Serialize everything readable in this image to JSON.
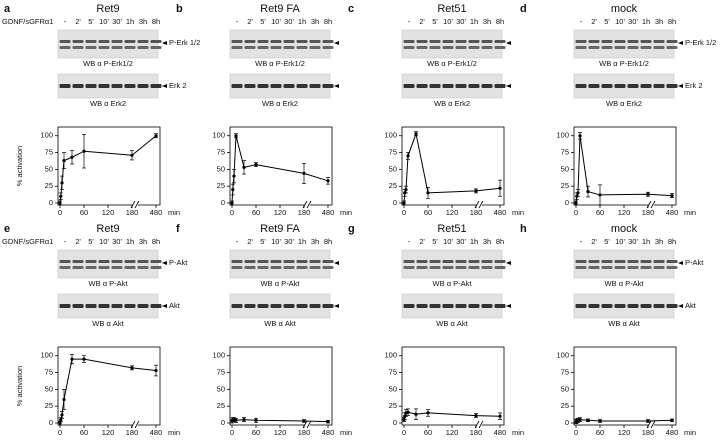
{
  "chart_data": [
    {
      "type": "line",
      "panel": "a",
      "title": "Ret9",
      "treatment": "GDNF/sGFRα1",
      "lanes": [
        "-",
        "2'",
        "5'",
        "10'",
        "30'",
        "1h",
        "3h",
        "8h"
      ],
      "blots": [
        {
          "label": "P-Erk 1/2",
          "caption": "WB α P-Erk1/2"
        },
        {
          "label": "Erk 2",
          "caption": "WB α Erk2"
        }
      ],
      "ylabel": "% activation",
      "xlabel": "min",
      "x": [
        0,
        2,
        5,
        10,
        30,
        60,
        180,
        480
      ],
      "values": [
        0,
        10,
        30,
        63,
        68,
        77,
        71,
        100
      ],
      "errors": [
        3,
        5,
        10,
        12,
        10,
        25,
        7,
        3
      ],
      "xlim": [
        0,
        480
      ],
      "ylim": [
        0,
        110
      ],
      "xticks": [
        0,
        60,
        120,
        180,
        480
      ],
      "yticks": [
        0,
        25,
        50,
        75,
        100
      ],
      "axis_break": true,
      "color": "#000000"
    },
    {
      "type": "line",
      "panel": "b",
      "title": "Ret9 FA",
      "lanes": [
        "-",
        "2'",
        "5'",
        "10'",
        "30'",
        "1h",
        "3h",
        "8h"
      ],
      "blots": [
        {
          "caption": "WB α P-Erk1/2"
        },
        {
          "caption": "WB α Erk2"
        }
      ],
      "xlabel": "min",
      "x": [
        0,
        2,
        5,
        10,
        30,
        60,
        180,
        480
      ],
      "values": [
        0,
        20,
        40,
        100,
        53,
        57,
        44,
        33
      ],
      "errors": [
        3,
        8,
        10,
        3,
        10,
        3,
        15,
        5
      ],
      "xlim": [
        0,
        480
      ],
      "ylim": [
        0,
        110
      ],
      "xticks": [
        0,
        60,
        120,
        180,
        480
      ],
      "yticks": [
        0,
        25,
        50,
        75,
        100
      ],
      "axis_break": true,
      "color": "#000000"
    },
    {
      "type": "line",
      "panel": "c",
      "title": "Ret51",
      "lanes": [
        "-",
        "2'",
        "5'",
        "10'",
        "30'",
        "1h",
        "3h",
        "8h"
      ],
      "blots": [
        {
          "caption": "WB α P-Erk1/2"
        },
        {
          "caption": "WB α Erk2"
        }
      ],
      "xlabel": "min",
      "x": [
        0,
        2,
        5,
        10,
        30,
        60,
        180,
        480
      ],
      "values": [
        0,
        15,
        20,
        70,
        103,
        15,
        18,
        22
      ],
      "errors": [
        3,
        5,
        5,
        5,
        3,
        8,
        3,
        12
      ],
      "xlim": [
        0,
        480
      ],
      "ylim": [
        0,
        110
      ],
      "xticks": [
        0,
        60,
        120,
        180,
        480
      ],
      "yticks": [
        0,
        25,
        50,
        75,
        100
      ],
      "axis_break": true,
      "color": "#000000"
    },
    {
      "type": "line",
      "panel": "d",
      "title": "mock",
      "lanes": [
        "-",
        "2'",
        "5'",
        "10'",
        "30'",
        "1h",
        "3h",
        "8h"
      ],
      "blots": [
        {
          "label": "P-Erk 1/2",
          "caption": "WB α P-Erk1/2"
        },
        {
          "label": "Erk 2",
          "caption": "WB α Erk2"
        }
      ],
      "xlabel": "min",
      "x": [
        0,
        2,
        5,
        10,
        30,
        60,
        180,
        480
      ],
      "values": [
        0,
        10,
        15,
        100,
        17,
        12,
        13,
        11
      ],
      "errors": [
        3,
        5,
        5,
        5,
        8,
        15,
        3,
        3
      ],
      "xlim": [
        0,
        480
      ],
      "ylim": [
        0,
        110
      ],
      "xticks": [
        0,
        60,
        120,
        180,
        480
      ],
      "yticks": [
        0,
        25,
        50,
        75,
        100
      ],
      "axis_break": true,
      "color": "#000000"
    },
    {
      "type": "line",
      "panel": "e",
      "title": "Ret9",
      "treatment": "GDNF/sGFRα1",
      "lanes": [
        "-",
        "2'",
        "5'",
        "10'",
        "30'",
        "1h",
        "3h",
        "8h"
      ],
      "blots": [
        {
          "label": "P-Akt",
          "caption": "WB α P-Akt"
        },
        {
          "label": "Akt",
          "caption": "WB α Akt"
        }
      ],
      "ylabel": "% activation",
      "xlabel": "min",
      "x": [
        0,
        2,
        5,
        10,
        30,
        60,
        180,
        480
      ],
      "values": [
        0,
        5,
        12,
        35,
        95,
        95,
        82,
        78
      ],
      "errors": [
        3,
        3,
        5,
        15,
        7,
        5,
        3,
        8
      ],
      "xlim": [
        0,
        480
      ],
      "ylim": [
        0,
        110
      ],
      "xticks": [
        0,
        60,
        120,
        180,
        480
      ],
      "yticks": [
        0,
        25,
        50,
        75,
        100
      ],
      "axis_break": true,
      "color": "#000000"
    },
    {
      "type": "line",
      "panel": "f",
      "title": "Ret9 FA",
      "lanes": [
        "-",
        "2'",
        "5'",
        "10'",
        "30'",
        "1h",
        "3h",
        "8h"
      ],
      "blots": [
        {
          "caption": "WB α P-Akt"
        },
        {
          "caption": "WB α Akt"
        }
      ],
      "xlabel": "min",
      "x": [
        0,
        2,
        5,
        10,
        30,
        60,
        180,
        480
      ],
      "values": [
        3,
        5,
        5,
        4,
        5,
        4,
        3,
        2
      ],
      "errors": [
        3,
        3,
        3,
        3,
        3,
        3,
        2,
        2
      ],
      "xlim": [
        0,
        480
      ],
      "ylim": [
        0,
        110
      ],
      "xticks": [
        0,
        60,
        120,
        180,
        480
      ],
      "yticks": [
        0,
        25,
        50,
        75,
        100
      ],
      "axis_break": true,
      "color": "#000000"
    },
    {
      "type": "line",
      "panel": "g",
      "title": "Ret51",
      "lanes": [
        "-",
        "2'",
        "5'",
        "10'",
        "30'",
        "1h",
        "3h",
        "8h"
      ],
      "blots": [
        {
          "caption": "WB α P-Akt"
        },
        {
          "caption": "WB α Akt"
        }
      ],
      "xlabel": "min",
      "x": [
        0,
        2,
        5,
        10,
        30,
        60,
        180,
        480
      ],
      "values": [
        5,
        10,
        15,
        16,
        13,
        15,
        11,
        10
      ],
      "errors": [
        3,
        5,
        5,
        5,
        8,
        5,
        3,
        5
      ],
      "xlim": [
        0,
        480
      ],
      "ylim": [
        0,
        110
      ],
      "xticks": [
        0,
        60,
        120,
        180,
        480
      ],
      "yticks": [
        0,
        25,
        50,
        75,
        100
      ],
      "axis_break": true,
      "color": "#000000"
    },
    {
      "type": "line",
      "panel": "h",
      "title": "mock",
      "lanes": [
        "-",
        "2'",
        "5'",
        "10'",
        "30'",
        "1h",
        "3h",
        "8h"
      ],
      "blots": [
        {
          "label": "P-Akt",
          "caption": "WB α P-Akt"
        },
        {
          "label": "Akt",
          "caption": "WB α Akt"
        }
      ],
      "xlabel": "min",
      "x": [
        0,
        2,
        5,
        10,
        30,
        60,
        180,
        480
      ],
      "values": [
        2,
        3,
        4,
        5,
        4,
        3,
        3,
        4
      ],
      "errors": [
        3,
        3,
        3,
        3,
        2,
        2,
        2,
        2
      ],
      "xlim": [
        0,
        480
      ],
      "ylim": [
        0,
        110
      ],
      "xticks": [
        0,
        60,
        120,
        180,
        480
      ],
      "yticks": [
        0,
        25,
        50,
        75,
        100
      ],
      "axis_break": true,
      "color": "#000000"
    }
  ]
}
